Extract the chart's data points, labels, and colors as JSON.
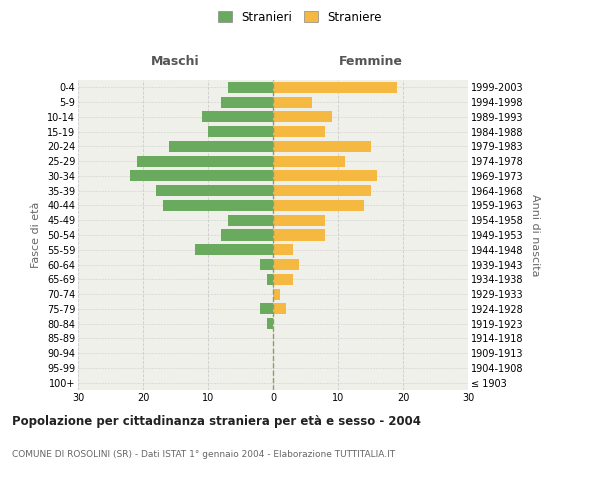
{
  "age_groups": [
    "100+",
    "95-99",
    "90-94",
    "85-89",
    "80-84",
    "75-79",
    "70-74",
    "65-69",
    "60-64",
    "55-59",
    "50-54",
    "45-49",
    "40-44",
    "35-39",
    "30-34",
    "25-29",
    "20-24",
    "15-19",
    "10-14",
    "5-9",
    "0-4"
  ],
  "birth_years": [
    "≤ 1903",
    "1904-1908",
    "1909-1913",
    "1914-1918",
    "1919-1923",
    "1924-1928",
    "1929-1933",
    "1934-1938",
    "1939-1943",
    "1944-1948",
    "1949-1953",
    "1954-1958",
    "1959-1963",
    "1964-1968",
    "1969-1973",
    "1974-1978",
    "1979-1983",
    "1984-1988",
    "1989-1993",
    "1994-1998",
    "1999-2003"
  ],
  "males": [
    0,
    0,
    0,
    0,
    1,
    2,
    0,
    1,
    2,
    12,
    8,
    7,
    17,
    18,
    22,
    21,
    16,
    10,
    11,
    8,
    7
  ],
  "females": [
    0,
    0,
    0,
    0,
    0,
    2,
    1,
    3,
    4,
    3,
    8,
    8,
    14,
    15,
    16,
    11,
    15,
    8,
    9,
    6,
    19
  ],
  "male_color": "#6aaa5e",
  "female_color": "#f5b942",
  "background_color": "#f0f0eb",
  "grid_color": "#cccccc",
  "bar_height": 0.75,
  "xlim": 30,
  "title": "Popolazione per cittadinanza straniera per età e sesso - 2004",
  "subtitle": "COMUNE DI ROSOLINI (SR) - Dati ISTAT 1° gennaio 2004 - Elaborazione TUTTITALIA.IT",
  "left_label": "Maschi",
  "right_label": "Femmine",
  "y_left_label": "Fasce di età",
  "y_right_label": "Anni di nascita",
  "legend_male": "Stranieri",
  "legend_female": "Straniere",
  "center_line_color": "#999966",
  "title_color": "#222222",
  "subtitle_color": "#666666",
  "header_color": "#555555",
  "axis_label_color": "#666666"
}
